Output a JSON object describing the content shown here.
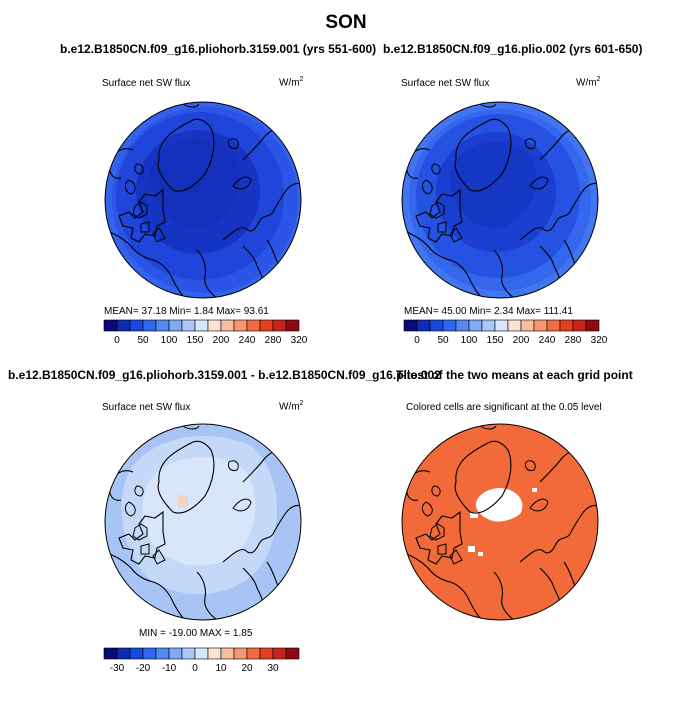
{
  "figure": {
    "title": "SON",
    "panels": [
      {
        "title": "b.e12.B1850CN.f09_g16.pliohorb.3159.001 (yrs 551-600)",
        "left_label": "Surface net SW flux",
        "units": "W/m",
        "units_sup": "2",
        "stats": "MEAN=   37.18   Min=     1.84   Max=   93.61"
      },
      {
        "title": "b.e12.B1850CN.f09_g16.plio.002 (yrs 601-650)",
        "left_label": "Surface net SW flux",
        "units": "W/m",
        "units_sup": "2",
        "stats": "MEAN=   45.00   Min=     2.34   Max=  111.41"
      },
      {
        "title": "b.e12.B1850CN.f09_g16.pliohorb.3159.001 - b.e12.B1850CN.f09_g16.plio.002",
        "left_label": "Surface net SW flux",
        "units": "W/m",
        "units_sup": "2",
        "stats": "MIN = -19.00  MAX =     1.85"
      },
      {
        "title": "T-test of the two means at each grid point",
        "left_label": "Colored cells are significant at the 0.05 level"
      }
    ]
  },
  "chart_data": [
    {
      "type": "heatmap",
      "projection": "north-polar-stereographic",
      "title": "b.e12.B1850CN.f09_g16.pliohorb.3159.001 (yrs 551-600)",
      "variable": "Surface net SW flux",
      "units": "W/m2",
      "mean": 37.18,
      "min": 1.84,
      "max": 93.61,
      "colorbar_ticks": [
        "0",
        "50",
        "100",
        "150",
        "200",
        "240",
        "280",
        "320"
      ],
      "colorbar_colors": [
        "#0a0a7a",
        "#0f2bb3",
        "#1847e0",
        "#2f66f0",
        "#5589f2",
        "#80aaf4",
        "#aac8f8",
        "#d6e6fb",
        "#fbe3d3",
        "#f7bda0",
        "#f59872",
        "#f06a44",
        "#e3401f",
        "#c8221a",
        "#8a0c10"
      ]
    },
    {
      "type": "heatmap",
      "projection": "north-polar-stereographic",
      "title": "b.e12.B1850CN.f09_g16.plio.002 (yrs 601-650)",
      "variable": "Surface net SW flux",
      "units": "W/m2",
      "mean": 45.0,
      "min": 2.34,
      "max": 111.41,
      "colorbar_ticks": [
        "0",
        "50",
        "100",
        "150",
        "200",
        "240",
        "280",
        "320"
      ],
      "colorbar_colors": [
        "#0a0a7a",
        "#0f2bb3",
        "#1847e0",
        "#2f66f0",
        "#5589f2",
        "#80aaf4",
        "#aac8f8",
        "#d6e6fb",
        "#fbe3d3",
        "#f7bda0",
        "#f59872",
        "#f06a44",
        "#e3401f",
        "#c8221a",
        "#8a0c10"
      ]
    },
    {
      "type": "heatmap",
      "projection": "north-polar-stereographic",
      "title": "b.e12.B1850CN.f09_g16.pliohorb.3159.001 - b.e12.B1850CN.f09_g16.plio.002",
      "variable": "Surface net SW flux",
      "units": "W/m2",
      "min": -19.0,
      "max": 1.85,
      "colorbar_ticks": [
        "-30",
        "-20",
        "-10",
        "0",
        "10",
        "20",
        "30"
      ],
      "colorbar_colors": [
        "#0a0a7a",
        "#0f2bb3",
        "#1847e0",
        "#2f66f0",
        "#5589f2",
        "#80aaf4",
        "#aac8f8",
        "#d6e6fb",
        "#fbe3d3",
        "#f7bda0",
        "#f59872",
        "#f06a44",
        "#e3401f",
        "#c8221a",
        "#8a0c10"
      ]
    },
    {
      "type": "heatmap",
      "projection": "north-polar-stereographic",
      "title": "T-test of the two means at each grid point",
      "annotation": "Colored cells are significant at the 0.05 level",
      "significant_color": "#f26a3a"
    }
  ],
  "colors": {
    "deep_blue": "#1f3fd6",
    "mid_blue": "#2a55e6",
    "light_blue": "#a8c4f5",
    "pale_blue": "#d3e3fa",
    "significant_orange": "#f26a3a",
    "coastline": "#000000"
  }
}
